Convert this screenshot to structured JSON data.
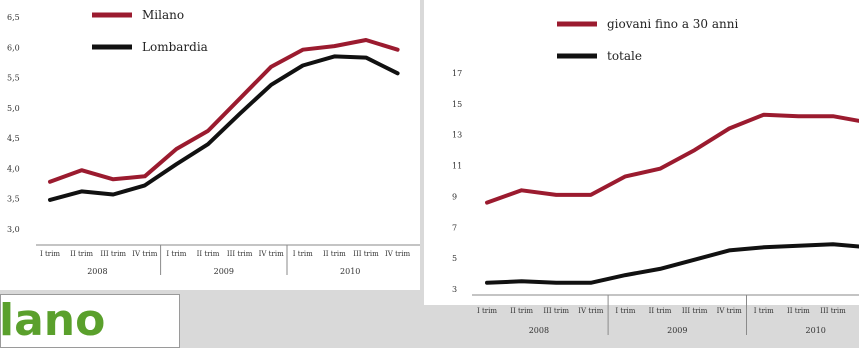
{
  "chart_data": [
    {
      "type": "line",
      "ylim": [
        3.0,
        6.5
      ],
      "yticks": [
        "3,0",
        "3,5",
        "4,0",
        "4,5",
        "5,0",
        "5,5",
        "6,0",
        "6,5"
      ],
      "categories": [
        "I trim",
        "II trim",
        "III trim",
        "IV trim",
        "I trim",
        "II trim",
        "III trim",
        "IV trim",
        "I trim",
        "II trim",
        "III trim",
        "IV trim"
      ],
      "year_groups": [
        "2008",
        "2009",
        "2010"
      ],
      "series": [
        {
          "name": "Milano",
          "color": "#9b1b2f",
          "values": [
            3.78,
            3.97,
            3.82,
            3.87,
            4.32,
            4.62,
            5.15,
            5.68,
            5.96,
            6.02,
            6.12,
            5.96
          ]
        },
        {
          "name": "Lombardia",
          "color": "#111111",
          "values": [
            3.48,
            3.62,
            3.57,
            3.72,
            4.07,
            4.4,
            4.9,
            5.38,
            5.7,
            5.85,
            5.83,
            5.57
          ]
        }
      ],
      "legend": "top-left",
      "grid": false
    },
    {
      "type": "line",
      "ylim": [
        3,
        17
      ],
      "yticks": [
        "3",
        "5",
        "7",
        "9",
        "11",
        "13",
        "15",
        "17"
      ],
      "categories": [
        "I trim",
        "II trim",
        "III trim",
        "IV trim",
        "I trim",
        "II trim",
        "III trim",
        "IV trim",
        "I trim",
        "II trim",
        "III trim",
        "IV"
      ],
      "year_groups": [
        "2008",
        "2009",
        "2010"
      ],
      "series": [
        {
          "name": "giovani fino a 30 anni",
          "color": "#9b1b2f",
          "values": [
            8.6,
            9.4,
            9.1,
            9.1,
            10.3,
            10.8,
            12.0,
            13.4,
            14.3,
            14.2,
            14.2,
            13.8
          ]
        },
        {
          "name": "totale",
          "color": "#111111",
          "values": [
            3.4,
            3.5,
            3.4,
            3.4,
            3.9,
            4.3,
            4.9,
            5.5,
            5.7,
            5.8,
            5.9,
            5.7
          ]
        }
      ],
      "legend": "top",
      "grid": false
    }
  ],
  "fragment": {
    "text": "lano"
  }
}
